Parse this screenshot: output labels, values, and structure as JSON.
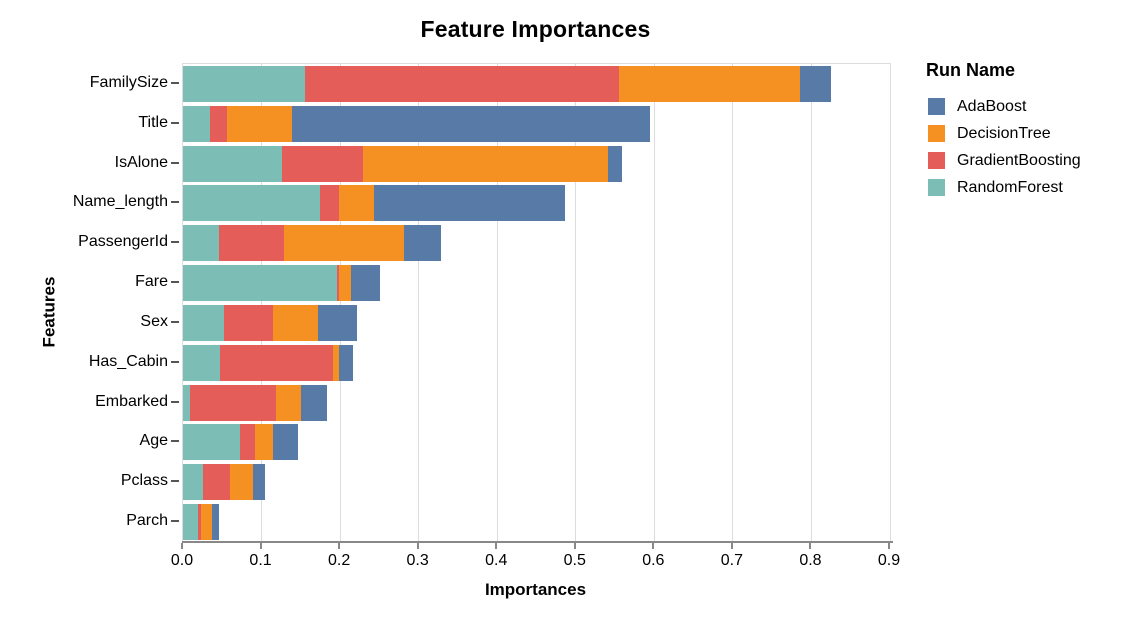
{
  "title": "Feature Importances",
  "axes": {
    "x_label": "Importances",
    "y_label": "Features",
    "x_ticks": [
      "0.0",
      "0.1",
      "0.2",
      "0.3",
      "0.4",
      "0.5",
      "0.6",
      "0.7",
      "0.8",
      "0.9"
    ]
  },
  "legend": {
    "title": "Run Name",
    "items": [
      {
        "label": "AdaBoost",
        "color": "#587AA6"
      },
      {
        "label": "DecisionTree",
        "color": "#F59123"
      },
      {
        "label": "GradientBoosting",
        "color": "#E45D59"
      },
      {
        "label": "RandomForest",
        "color": "#7CBEB6"
      }
    ]
  },
  "chart_data": {
    "type": "bar",
    "orientation": "horizontal",
    "stacked": true,
    "title": "Feature Importances",
    "xlabel": "Importances",
    "ylabel": "Features",
    "xlim": [
      0,
      0.9
    ],
    "grid": true,
    "legend_position": "right",
    "categories": [
      "FamilySize",
      "Title",
      "IsAlone",
      "Name_length",
      "PassengerId",
      "Fare",
      "Sex",
      "Has_Cabin",
      "Embarked",
      "Age",
      "Pclass",
      "Parch"
    ],
    "stack_order": [
      "RandomForest",
      "GradientBoosting",
      "DecisionTree",
      "AdaBoost"
    ],
    "series": [
      {
        "name": "RandomForest",
        "color": "#7CBEB6",
        "values": [
          0.155,
          0.035,
          0.126,
          0.174,
          0.046,
          0.196,
          0.052,
          0.047,
          0.009,
          0.072,
          0.026,
          0.019
        ]
      },
      {
        "name": "GradientBoosting",
        "color": "#E45D59",
        "values": [
          0.4,
          0.021,
          0.103,
          0.024,
          0.083,
          0.002,
          0.062,
          0.144,
          0.109,
          0.02,
          0.034,
          0.004
        ]
      },
      {
        "name": "DecisionTree",
        "color": "#F59123",
        "values": [
          0.23,
          0.083,
          0.312,
          0.045,
          0.152,
          0.016,
          0.058,
          0.007,
          0.032,
          0.022,
          0.029,
          0.014
        ]
      },
      {
        "name": "AdaBoost",
        "color": "#587AA6",
        "values": [
          0.04,
          0.456,
          0.018,
          0.243,
          0.047,
          0.037,
          0.05,
          0.019,
          0.033,
          0.033,
          0.016,
          0.009
        ]
      }
    ],
    "totals": [
      0.825,
      0.595,
      0.559,
      0.486,
      0.328,
      0.251,
      0.222,
      0.217,
      0.183,
      0.147,
      0.105,
      0.046
    ]
  }
}
